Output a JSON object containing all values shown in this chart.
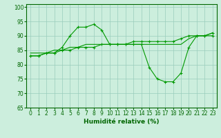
{
  "title": "",
  "xlabel": "Humidité relative (%)",
  "ylabel": "",
  "background_color": "#cceedd",
  "grid_color": "#99ccbb",
  "line_color": "#009900",
  "xlim": [
    -0.5,
    23.5
  ],
  "ylim": [
    65,
    101
  ],
  "yticks": [
    65,
    70,
    75,
    80,
    85,
    90,
    95,
    100
  ],
  "xticks": [
    0,
    1,
    2,
    3,
    4,
    5,
    6,
    7,
    8,
    9,
    10,
    11,
    12,
    13,
    14,
    15,
    16,
    17,
    18,
    19,
    20,
    21,
    22,
    23
  ],
  "series1_x": [
    0,
    1,
    2,
    3,
    4,
    5,
    6,
    7,
    8,
    9,
    10,
    11,
    12,
    13,
    14,
    15,
    16,
    17,
    18,
    19,
    20,
    21,
    22,
    23
  ],
  "series1_y": [
    83,
    83,
    84,
    84,
    86,
    90,
    93,
    93,
    94,
    92,
    87,
    87,
    87,
    87,
    87,
    79,
    75,
    74,
    74,
    77,
    86,
    90,
    90,
    91
  ],
  "series2_x": [
    0,
    1,
    2,
    3,
    4,
    5,
    6,
    7,
    8,
    9,
    10,
    11,
    12,
    13,
    14,
    15,
    16,
    17,
    18,
    19,
    20,
    21,
    22,
    23
  ],
  "series2_y": [
    83,
    83,
    84,
    84,
    85,
    85,
    86,
    86,
    86,
    87,
    87,
    87,
    87,
    88,
    88,
    88,
    88,
    88,
    88,
    89,
    90,
    90,
    90,
    90
  ],
  "series3_x": [
    0,
    1,
    2,
    3,
    4,
    5,
    6,
    7,
    8,
    9,
    10,
    11,
    12,
    13,
    14,
    15,
    16,
    17,
    18,
    19,
    20,
    21,
    22,
    23
  ],
  "series3_y": [
    84,
    84,
    84,
    85,
    85,
    86,
    86,
    87,
    87,
    87,
    87,
    87,
    87,
    87,
    87,
    87,
    87,
    87,
    87,
    87,
    89,
    90,
    90,
    91
  ]
}
